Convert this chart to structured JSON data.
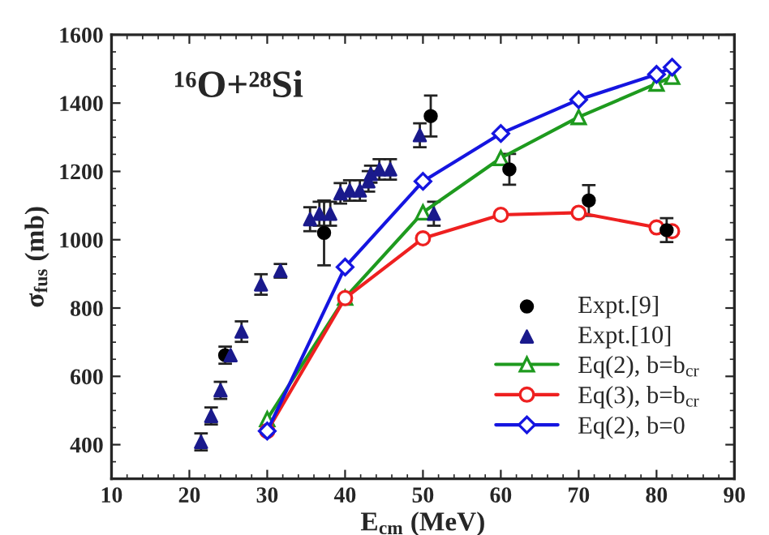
{
  "chart_data": {
    "type": "scatter",
    "xlabel": "E$_{cm}$ (MeV)",
    "ylabel": "σ$_{fus}$ (mb)",
    "annotations": [
      "¹⁶O+²⁸Si"
    ],
    "xlim": [
      10,
      90
    ],
    "xticks": [
      10,
      20,
      30,
      40,
      50,
      60,
      70,
      80,
      90
    ],
    "ylim": [
      300,
      1600
    ],
    "yticks": [
      400,
      600,
      800,
      1000,
      1200,
      1400,
      1600
    ],
    "grid": false,
    "legend": "bottom right",
    "series": [
      {
        "name": "Expt.[9]",
        "marker": "circle",
        "color": "#000000",
        "x": [
          24.6,
          37.3,
          51.0,
          61.1,
          71.3,
          81.3
        ],
        "values": [
          662,
          1020,
          1362,
          1206,
          1115,
          1028
        ],
        "errors": [
          25,
          95,
          60,
          45,
          45,
          35
        ]
      },
      {
        "name": "Expt.[10]",
        "marker": "triangle",
        "color": "#1a1a8c",
        "x": [
          21.5,
          22.8,
          24.0,
          25.3,
          26.7,
          29.2,
          31.7,
          35.5,
          36.7,
          38.1,
          39.4,
          40.6,
          41.9,
          43.0,
          43.3,
          44.4,
          45.8,
          49.6,
          51.4
        ],
        "values": [
          408,
          484,
          559,
          662,
          731,
          869,
          909,
          1060,
          1076,
          1076,
          1136,
          1144,
          1144,
          1171,
          1192,
          1206,
          1206,
          1306,
          1076
        ],
        "errors": [
          25,
          25,
          25,
          null,
          30,
          30,
          20,
          35,
          35,
          35,
          30,
          30,
          30,
          30,
          25,
          30,
          30,
          35,
          35
        ]
      },
      {
        "name": "Eq(2), b=b$_{cr}$",
        "type": "line",
        "marker": "triangle",
        "color": "#1e9a1e",
        "x": [
          30,
          40,
          50,
          60,
          70,
          80,
          82
        ],
        "values": [
          475,
          830,
          1080,
          1239,
          1359,
          1457,
          1477
        ]
      },
      {
        "name": "Eq(3), b=b$_{cr}$",
        "type": "line",
        "marker": "circle",
        "color": "#ee2020",
        "x": [
          30,
          40,
          50,
          60,
          70,
          80,
          82
        ],
        "values": [
          440,
          829,
          1004,
          1073,
          1079,
          1036,
          1025
        ]
      },
      {
        "name": "Eq(2), b=0",
        "type": "line",
        "marker": "diamond",
        "color": "#1515e0",
        "x": [
          30,
          40,
          50,
          60,
          70,
          80,
          82
        ],
        "values": [
          440,
          920,
          1171,
          1311,
          1410,
          1484,
          1505
        ]
      }
    ]
  }
}
